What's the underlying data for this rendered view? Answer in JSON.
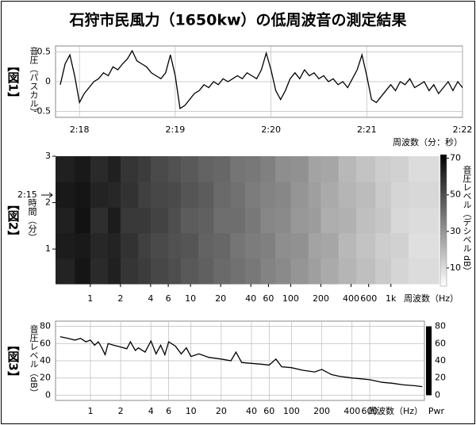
{
  "title": "石狩市民風力（1650kw）の低周波音の測定結果",
  "chart_data": [
    {
      "type": "line",
      "label": "【図1】",
      "y_label": "音圧（パスカル）",
      "x_label": "周波数（分：秒）",
      "color": "#000000",
      "grid": true,
      "log_x": false,
      "xlim": [
        137.75,
        142
      ],
      "ylim": [
        -0.6,
        0.6
      ],
      "xticks": [
        {
          "value": 138,
          "label": "2:18"
        },
        {
          "value": 139,
          "label": "2:19"
        },
        {
          "value": 140,
          "label": "2:20"
        },
        {
          "value": 141,
          "label": "2:21"
        },
        {
          "value": 142,
          "label": "2:22"
        }
      ],
      "yticks": [
        0.5,
        0,
        -0.5
      ],
      "x": [
        137.8,
        137.85,
        137.9,
        137.95,
        138,
        138.05,
        138.1,
        138.15,
        138.2,
        138.25,
        138.3,
        138.35,
        138.4,
        138.45,
        138.5,
        138.55,
        138.6,
        138.65,
        138.7,
        138.75,
        138.8,
        138.85,
        138.9,
        138.95,
        139,
        139.05,
        139.1,
        139.15,
        139.2,
        139.25,
        139.3,
        139.35,
        139.4,
        139.45,
        139.5,
        139.55,
        139.6,
        139.65,
        139.7,
        139.75,
        139.8,
        139.85,
        139.9,
        139.95,
        140,
        140.05,
        140.1,
        140.15,
        140.2,
        140.25,
        140.3,
        140.35,
        140.4,
        140.45,
        140.5,
        140.55,
        140.6,
        140.65,
        140.7,
        140.75,
        140.8,
        140.85,
        140.9,
        140.95,
        141,
        141.05,
        141.1,
        141.15,
        141.2,
        141.25,
        141.3,
        141.35,
        141.4,
        141.45,
        141.5,
        141.55,
        141.6,
        141.65,
        141.7,
        141.75,
        141.8,
        141.85,
        141.9,
        141.95,
        142
      ],
      "values": [
        -0.05,
        0.3,
        0.45,
        0.1,
        -0.35,
        -0.2,
        -0.1,
        0,
        0.05,
        0.15,
        0.1,
        0.25,
        0.2,
        0.3,
        0.38,
        0.52,
        0.35,
        0.3,
        0.25,
        0.15,
        0.1,
        0.05,
        0.15,
        0.45,
        0.1,
        -0.45,
        -0.4,
        -0.3,
        -0.2,
        -0.15,
        -0.05,
        -0.1,
        0,
        -0.05,
        0.05,
        0,
        0.05,
        0.1,
        0.05,
        0.15,
        0.1,
        0.05,
        0.2,
        0.48,
        0.2,
        -0.15,
        -0.3,
        -0.15,
        0.05,
        0.15,
        0.05,
        0.2,
        0.1,
        0.15,
        0.05,
        0.1,
        0,
        0.05,
        -0.05,
        0,
        -0.1,
        0.05,
        0.2,
        0.45,
        0.1,
        -0.3,
        -0.35,
        -0.25,
        -0.15,
        -0.05,
        -0.15,
        0,
        -0.05,
        0.05,
        -0.1,
        -0.05,
        0,
        -0.15,
        -0.05,
        -0.2,
        -0.1,
        0,
        -0.15,
        0,
        -0.1
      ]
    },
    {
      "type": "heatmap",
      "label": "【図2】",
      "y_label": "時間（分）",
      "x_label": "周波数（Hz）",
      "colorbar_label": "音圧レベル（デシベル dB）",
      "annotation": "2:15",
      "log_x": true,
      "xlim": [
        0.45,
        3000
      ],
      "ylim": [
        0.25,
        3
      ],
      "clim": [
        0,
        72
      ],
      "xticks": [
        1,
        2,
        4,
        6,
        10,
        20,
        40,
        60,
        100,
        200,
        400,
        600,
        {
          "value": 1000,
          "label": "1k"
        }
      ],
      "yticks": [
        1,
        2,
        3
      ],
      "cticks": [
        10,
        30,
        50,
        70
      ],
      "x_bins": [
        0.45,
        0.7,
        1,
        1.5,
        2,
        3,
        4,
        6,
        8,
        12,
        17,
        25,
        35,
        50,
        70,
        100,
        150,
        200,
        300,
        450,
        700,
        1000,
        1500,
        3000
      ],
      "y_bins": [
        0.25,
        0.8,
        1.35,
        1.9,
        2.45,
        3
      ],
      "values": [
        [
          62,
          66,
          60,
          63,
          57,
          55,
          52,
          50,
          47,
          45,
          42,
          40,
          38,
          35,
          33,
          30,
          27,
          24,
          21,
          18,
          15,
          12,
          10
        ],
        [
          64,
          65,
          61,
          62,
          58,
          54,
          51,
          49,
          48,
          44,
          43,
          39,
          37,
          36,
          32,
          31,
          26,
          25,
          20,
          17,
          14,
          13,
          9
        ],
        [
          63,
          67,
          59,
          64,
          56,
          56,
          53,
          50,
          46,
          45,
          41,
          41,
          38,
          34,
          33,
          29,
          28,
          23,
          22,
          18,
          16,
          11,
          10
        ],
        [
          65,
          66,
          62,
          61,
          58,
          54,
          52,
          51,
          48,
          46,
          42,
          40,
          37,
          35,
          34,
          30,
          27,
          24,
          21,
          19,
          15,
          12,
          11
        ],
        [
          63,
          65,
          60,
          63,
          57,
          55,
          51,
          49,
          47,
          44,
          43,
          39,
          38,
          36,
          32,
          31,
          26,
          25,
          20,
          17,
          14,
          13,
          10
        ]
      ]
    },
    {
      "type": "line",
      "label": "【図3】",
      "y_label": "音圧レベル（dB）",
      "x_label": "周波数（Hz）",
      "colorbar_label": "Pwr",
      "colorbar_color": "#000000",
      "color": "#000000",
      "grid": true,
      "log_x": true,
      "xlim": [
        0.45,
        2100
      ],
      "ylim": [
        -6,
        86
      ],
      "xticks": [
        1,
        2,
        4,
        6,
        10,
        20,
        40,
        60,
        100,
        200,
        400,
        600
      ],
      "yticks": [
        0,
        20,
        40,
        60,
        80
      ],
      "cticks": [
        0,
        20,
        40,
        60,
        80
      ],
      "x": [
        0.5,
        0.6,
        0.7,
        0.8,
        0.9,
        1,
        1.1,
        1.2,
        1.3,
        1.4,
        1.5,
        1.7,
        2,
        2.3,
        2.5,
        2.8,
        3,
        3.5,
        4,
        4.5,
        5,
        5.5,
        6,
        7,
        8,
        9,
        10,
        12,
        15,
        20,
        25,
        28,
        32,
        40,
        50,
        60,
        70,
        80,
        100,
        130,
        170,
        200,
        250,
        300,
        400,
        500,
        600,
        800,
        1000,
        1300,
        1700,
        2000
      ],
      "values": [
        68,
        66,
        64,
        66,
        62,
        64,
        58,
        62,
        55,
        47,
        60,
        58,
        56,
        54,
        62,
        52,
        55,
        50,
        63,
        48,
        58,
        47,
        62,
        57,
        48,
        55,
        45,
        48,
        44,
        42,
        40,
        50,
        38,
        37,
        36,
        35,
        42,
        33,
        32,
        29,
        27,
        30,
        24,
        22,
        20,
        19,
        18,
        15,
        14,
        12,
        11,
        10
      ]
    }
  ]
}
